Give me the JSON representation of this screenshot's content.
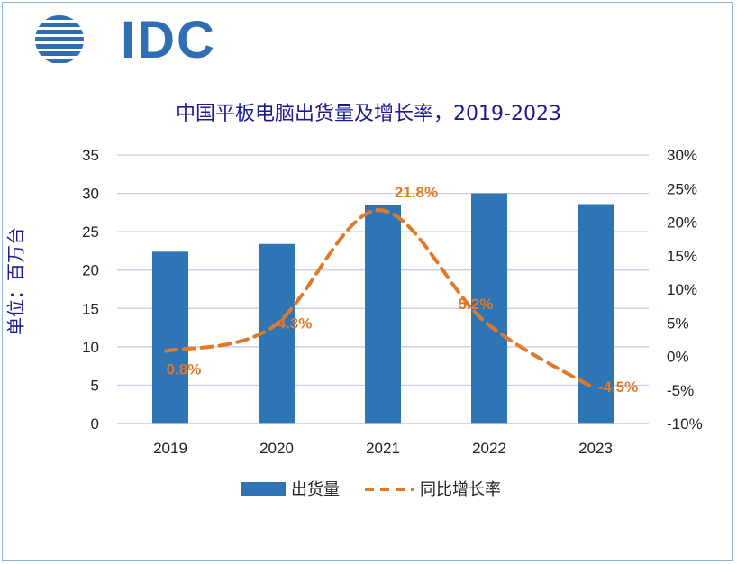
{
  "logo": {
    "text": "IDC"
  },
  "chart_data": {
    "type": "bar",
    "title": "中国平板电脑出货量及增长率，2019-2023",
    "ylabel": "单位：百万台",
    "categories": [
      "2019",
      "2020",
      "2021",
      "2022",
      "2023"
    ],
    "ylim": [
      0,
      35
    ],
    "y_ticks": [
      "0",
      "5",
      "10",
      "15",
      "20",
      "25",
      "30",
      "35"
    ],
    "y2lim": [
      -10,
      30
    ],
    "y2_ticks": [
      "-10%",
      "-5%",
      "0%",
      "5%",
      "10%",
      "15%",
      "20%",
      "25%",
      "30%"
    ],
    "series": [
      {
        "name": "出货量",
        "type": "bar",
        "axis": "left",
        "values": [
          22.4,
          23.4,
          28.5,
          30.0,
          28.6
        ],
        "color": "#2e75b6"
      },
      {
        "name": "同比增长率",
        "type": "line",
        "axis": "right",
        "style": "dashed",
        "values": [
          0.8,
          4.3,
          21.8,
          5.2,
          -4.5
        ],
        "labels": [
          "0.8%",
          "4.3%",
          "21.8%",
          "5.2%",
          "-4.5%"
        ],
        "color": "#e07a2b"
      }
    ],
    "grid": true,
    "legend_position": "bottom"
  }
}
